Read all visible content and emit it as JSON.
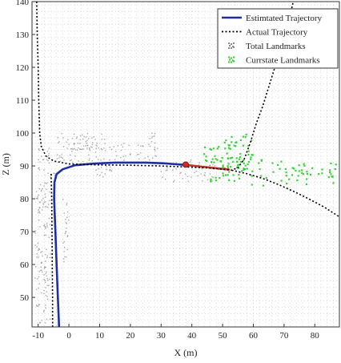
{
  "chart_data": {
    "type": "scatter",
    "title": "",
    "xlabel": "X (m)",
    "ylabel": "Z (m)",
    "xlim": [
      -12,
      88
    ],
    "ylim": [
      41,
      140
    ],
    "xticks": [
      -10,
      0,
      10,
      20,
      30,
      40,
      50,
      60,
      70,
      80
    ],
    "yticks": [
      50,
      60,
      70,
      80,
      90,
      100,
      110,
      120,
      130,
      140
    ],
    "grid": true,
    "grid_style": "dotted",
    "legend_position": "top-right",
    "series": [
      {
        "name": "Estimtated Trajectory",
        "kind": "line",
        "color": "#1f2f9e",
        "style": "solid",
        "points": [
          [
            -3.2,
            41
          ],
          [
            -3.6,
            50
          ],
          [
            -4.0,
            60
          ],
          [
            -4.4,
            70
          ],
          [
            -4.8,
            80
          ],
          [
            -4.7,
            85
          ],
          [
            -4.0,
            87.5
          ],
          [
            -2,
            89
          ],
          [
            2,
            90.2
          ],
          [
            8,
            90.7
          ],
          [
            15,
            91
          ],
          [
            25,
            91
          ],
          [
            31,
            90.8
          ],
          [
            35,
            90.5
          ],
          [
            38,
            90.3
          ]
        ]
      },
      {
        "name": "Estimtated Trajectory (recent)",
        "kind": "line",
        "color": "#c0392b",
        "style": "solid",
        "points": [
          [
            38,
            90.3
          ],
          [
            43,
            89.8
          ],
          [
            48,
            89.3
          ],
          [
            52,
            88.9
          ]
        ]
      },
      {
        "name": "Current position",
        "kind": "marker",
        "color": "#d62728",
        "points": [
          [
            38,
            90.4
          ]
        ]
      },
      {
        "name": "Actual Trajectory",
        "kind": "line",
        "color": "#000000",
        "style": "dotted",
        "points": [
          [
            -10.5,
            140
          ],
          [
            -10.3,
            130
          ],
          [
            -10,
            120
          ],
          [
            -9.8,
            110
          ],
          [
            -9.5,
            100
          ],
          [
            -9,
            96
          ],
          [
            -7.5,
            93
          ],
          [
            -5,
            91.5
          ],
          [
            0,
            90.6
          ],
          [
            10,
            90.3
          ],
          [
            20,
            90.2
          ],
          [
            30,
            90
          ],
          [
            40,
            89.6
          ],
          [
            45,
            89.4
          ],
          [
            50,
            89
          ],
          [
            53,
            88.7
          ],
          [
            55,
            89.5
          ],
          [
            57,
            92
          ],
          [
            59,
            97
          ],
          [
            61,
            103
          ],
          [
            63,
            108
          ],
          [
            65,
            114
          ],
          [
            67,
            120
          ],
          [
            69,
            126
          ],
          [
            71,
            133
          ],
          [
            72,
            136
          ],
          [
            73,
            140
          ],
          [
            75,
            150
          ]
        ]
      },
      {
        "name": "Actual Trajectory (lower branch)",
        "kind": "line",
        "color": "#000000",
        "style": "dotted",
        "points": [
          [
            -5.3,
            41
          ],
          [
            -5.3,
            50
          ],
          [
            -5.4,
            60
          ],
          [
            -5.5,
            70
          ],
          [
            -5.6,
            80
          ],
          [
            -5.8,
            88
          ]
        ]
      },
      {
        "name": "Actual Trajectory (future)",
        "kind": "line",
        "color": "#000000",
        "style": "dotted",
        "points": [
          [
            53,
            88.7
          ],
          [
            58,
            87.6
          ],
          [
            63,
            86.2
          ],
          [
            68,
            84.4
          ],
          [
            73,
            82.3
          ],
          [
            78,
            80
          ],
          [
            83,
            77.5
          ],
          [
            88,
            74.5
          ]
        ]
      },
      {
        "name": "Total Landmarks",
        "kind": "scatter",
        "color": "#8a8a8a",
        "clusters": [
          {
            "x": [
              -11,
              -6
            ],
            "y": [
              42,
              85
            ],
            "n": 130
          },
          {
            "x": [
              -2,
              0
            ],
            "y": [
              60,
              80
            ],
            "n": 25
          },
          {
            "x": [
              -4,
              12
            ],
            "y": [
              91,
              100
            ],
            "n": 70
          },
          {
            "x": [
              0,
              8
            ],
            "y": [
              95,
              99
            ],
            "n": 25
          },
          {
            "x": [
              12,
              30
            ],
            "y": [
              91,
              97
            ],
            "n": 40
          },
          {
            "x": [
              26,
              28
            ],
            "y": [
              95,
              100
            ],
            "n": 10
          },
          {
            "x": [
              8,
              14
            ],
            "y": [
              86,
              90
            ],
            "n": 15
          },
          {
            "x": [
              30,
              48
            ],
            "y": [
              85,
              92
            ],
            "n": 45
          },
          {
            "x": [
              -10,
              -4
            ],
            "y": [
              86,
              96
            ],
            "n": 25
          }
        ]
      },
      {
        "name": "Currstate Landmarks",
        "kind": "scatter",
        "color": "#33cc33",
        "clusters": [
          {
            "x": [
              50,
              60
            ],
            "y": [
              89,
              100
            ],
            "n": 45
          },
          {
            "x": [
              46,
              56
            ],
            "y": [
              85,
              93
            ],
            "n": 30
          },
          {
            "x": [
              56,
              88
            ],
            "y": [
              84,
              92
            ],
            "n": 60
          },
          {
            "x": [
              44,
              52
            ],
            "y": [
              91,
              96
            ],
            "n": 15
          }
        ]
      }
    ],
    "legend": [
      {
        "label": "Estimtated Trajectory",
        "symbol": "line",
        "color": "#1f2f9e"
      },
      {
        "label": "Actual Trajectory",
        "symbol": "dotted",
        "color": "#000000"
      },
      {
        "label": "Total Landmarks",
        "symbol": "points",
        "color": "#8a8a8a"
      },
      {
        "label": "Currstate Landmarks",
        "symbol": "points",
        "color": "#33cc33"
      }
    ]
  }
}
